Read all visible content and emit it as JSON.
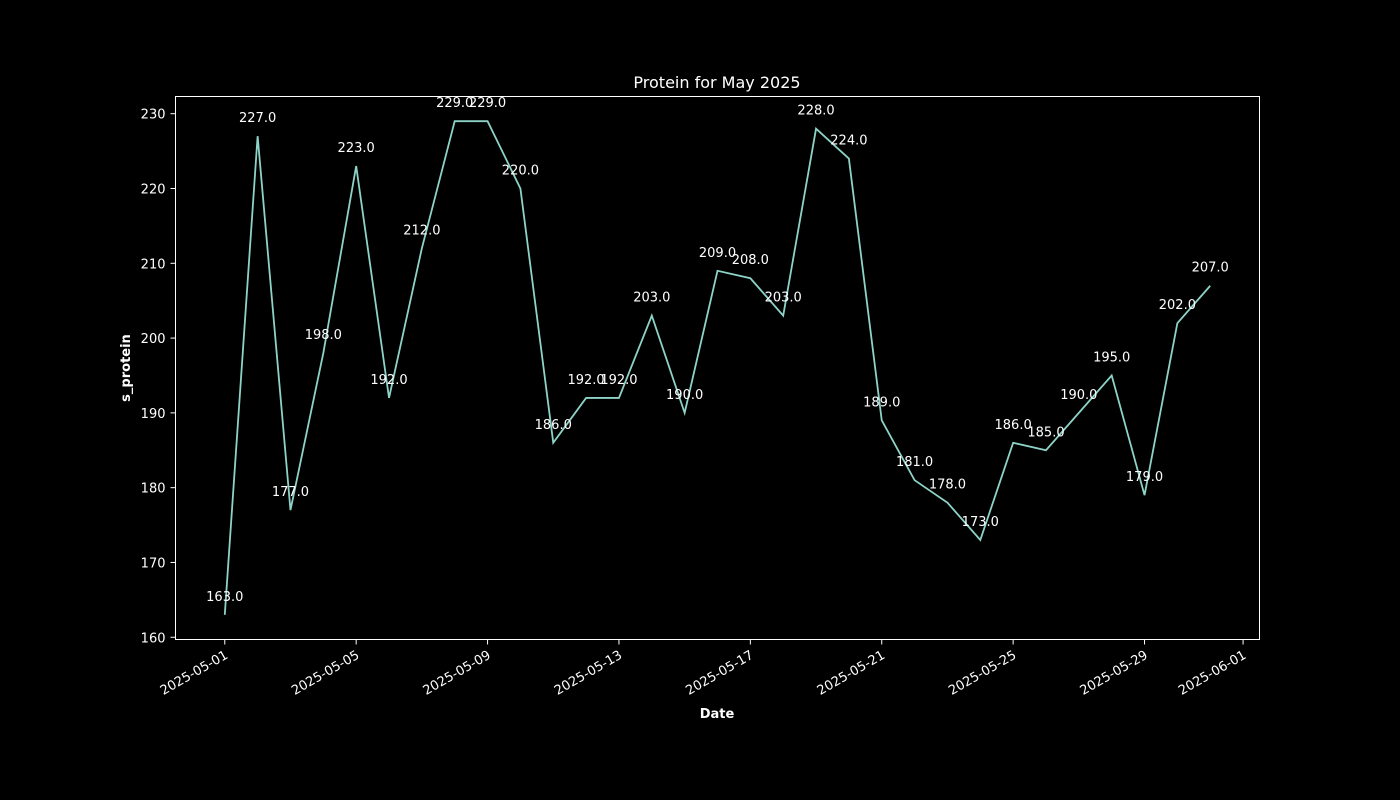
{
  "chart_data": {
    "type": "line",
    "title": "Protein for May 2025",
    "xlabel": "Date",
    "ylabel": "s_protein",
    "x": [
      "2025-05-01",
      "2025-05-02",
      "2025-05-03",
      "2025-05-04",
      "2025-05-05",
      "2025-05-06",
      "2025-05-07",
      "2025-05-08",
      "2025-05-09",
      "2025-05-10",
      "2025-05-11",
      "2025-05-12",
      "2025-05-13",
      "2025-05-14",
      "2025-05-15",
      "2025-05-16",
      "2025-05-17",
      "2025-05-18",
      "2025-05-19",
      "2025-05-20",
      "2025-05-21",
      "2025-05-22",
      "2025-05-23",
      "2025-05-24",
      "2025-05-25",
      "2025-05-26",
      "2025-05-27",
      "2025-05-28",
      "2025-05-29",
      "2025-05-30",
      "2025-05-31"
    ],
    "series": [
      {
        "values": [
          163.0,
          227.0,
          177.0,
          198.0,
          223.0,
          192.0,
          212.0,
          229.0,
          229.0,
          220.0,
          186.0,
          192.0,
          192.0,
          203.0,
          190.0,
          209.0,
          208.0,
          203.0,
          228.0,
          224.0,
          189.0,
          181.0,
          178.0,
          173.0,
          186.0,
          185.0,
          190.0,
          195.0,
          179.0,
          202.0,
          207.0
        ],
        "labels": [
          "163.0",
          "227.0",
          "177.0",
          "198.0",
          "223.0",
          "192.0",
          "212.0",
          "229.0",
          "229.0",
          "220.0",
          "186.0",
          "192.0",
          "192.0",
          "203.0",
          "190.0",
          "209.0",
          "208.0",
          "203.0",
          "228.0",
          "224.0",
          "189.0",
          "181.0",
          "178.0",
          "173.0",
          "186.0",
          "185.0",
          "190.0",
          "195.0",
          "179.0",
          "202.0",
          "207.0"
        ],
        "color": "#8dd3c7"
      }
    ],
    "xlim": [
      "2025-04-29.5",
      "2025-06-01.5"
    ],
    "ylim": [
      159.7,
      232.3
    ],
    "xticks": [
      "2025-05-01",
      "2025-05-05",
      "2025-05-09",
      "2025-05-13",
      "2025-05-17",
      "2025-05-21",
      "2025-05-25",
      "2025-05-29",
      "2025-06-01"
    ],
    "yticks": [
      160,
      170,
      180,
      190,
      200,
      210,
      220,
      230
    ],
    "grid": false,
    "background": "#000000",
    "axis_color": "#ffffff"
  }
}
